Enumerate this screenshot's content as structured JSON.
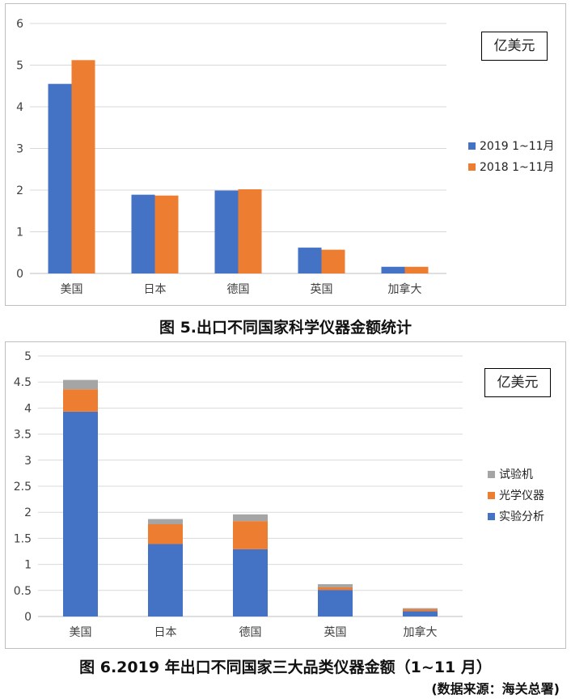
{
  "chart_data": [
    {
      "type": "bar",
      "title": "图 5.出口不同国家科学仪器金额统计",
      "unit": "亿美元",
      "categories": [
        "美国",
        "日本",
        "德国",
        "英国",
        "加拿大"
      ],
      "series": [
        {
          "name": "2019 1~11月",
          "values": [
            4.55,
            1.89,
            1.99,
            0.62,
            0.16
          ],
          "color": "#4472C4"
        },
        {
          "name": "2018 1~11月",
          "values": [
            5.12,
            1.87,
            2.02,
            0.57,
            0.16
          ],
          "color": "#ED7D31"
        }
      ],
      "ylim": [
        0,
        6
      ],
      "yticks": [
        "0",
        "1",
        "2",
        "3",
        "4",
        "5",
        "6"
      ],
      "legend": "right",
      "grid": true
    },
    {
      "type": "bar",
      "stacked": true,
      "title": "图 6.2019 年出口不同国家三大品类仪器金额（1~11 月）",
      "unit": "亿美元",
      "categories": [
        "美国",
        "日本",
        "德国",
        "英国",
        "加拿大"
      ],
      "series": [
        {
          "name": "实验分析",
          "values": [
            3.93,
            1.39,
            1.29,
            0.51,
            0.1
          ],
          "color": "#4472C4"
        },
        {
          "name": "光学仪器",
          "values": [
            0.43,
            0.38,
            0.54,
            0.05,
            0.04
          ],
          "color": "#ED7D31"
        },
        {
          "name": "试验机",
          "values": [
            0.18,
            0.1,
            0.13,
            0.06,
            0.02
          ],
          "color": "#A5A5A5"
        }
      ],
      "ylim": [
        0,
        5
      ],
      "yticks": [
        "0",
        "0.5",
        "1",
        "1.5",
        "2",
        "2.5",
        "3",
        "3.5",
        "4",
        "4.5",
        "5"
      ],
      "legend": "right",
      "grid": true
    }
  ],
  "source": "(数据来源：海关总署)"
}
